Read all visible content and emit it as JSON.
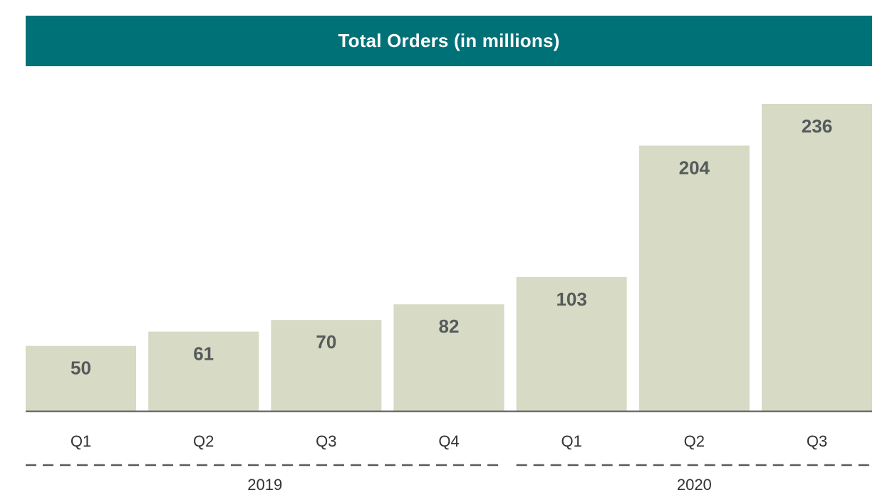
{
  "chart_data": {
    "type": "bar",
    "title": "Total Orders (in millions)",
    "categories": [
      "Q1",
      "Q2",
      "Q3",
      "Q4",
      "Q1",
      "Q2",
      "Q3"
    ],
    "values": [
      50,
      61,
      70,
      82,
      103,
      204,
      236
    ],
    "groups": [
      {
        "label": "2019",
        "categories": [
          0,
          1,
          2,
          3
        ]
      },
      {
        "label": "2020",
        "categories": [
          4,
          5,
          6
        ]
      }
    ],
    "ylim": [
      0,
      236
    ],
    "grid": false,
    "legend": "none",
    "data_labels": true
  },
  "colors": {
    "title_bg": "#007177",
    "title_text": "#ffffff",
    "bar": "#d7dac4",
    "value_text": "#555a5b",
    "axis": "#5a5a5a",
    "tick_text": "#333333",
    "divider": "#5a5a5a"
  }
}
